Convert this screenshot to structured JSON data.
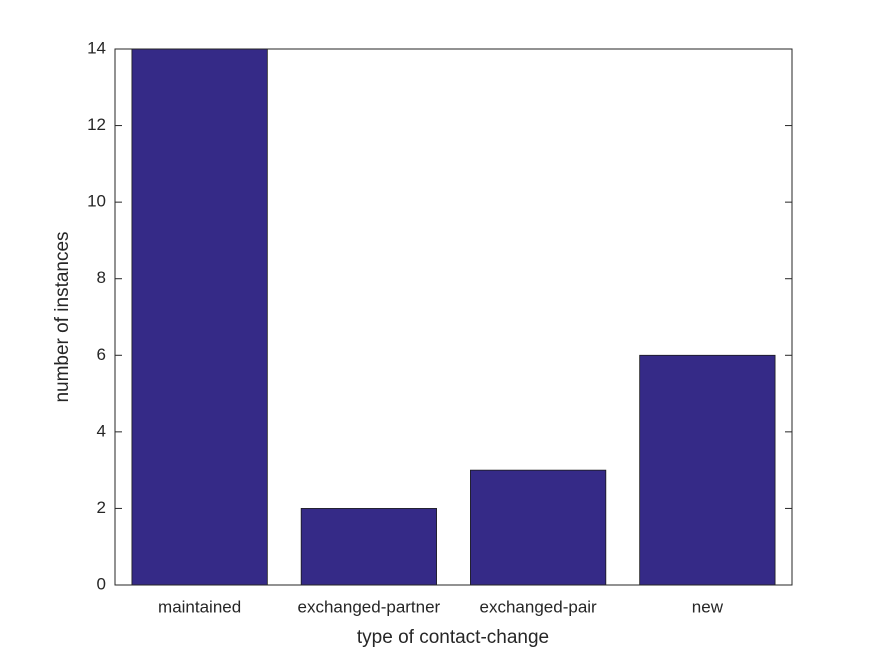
{
  "chart_data": {
    "type": "bar",
    "x_label": "type of contact-change",
    "y_label": "number of instances",
    "categories": [
      "maintained",
      "exchanged-partner",
      "exchanged-pair",
      "new"
    ],
    "values": [
      14,
      2,
      3,
      6
    ],
    "color": "#352a87",
    "ylim": [
      0,
      14
    ],
    "yticks": [
      0,
      2,
      4,
      6,
      8,
      10,
      12,
      14
    ]
  }
}
